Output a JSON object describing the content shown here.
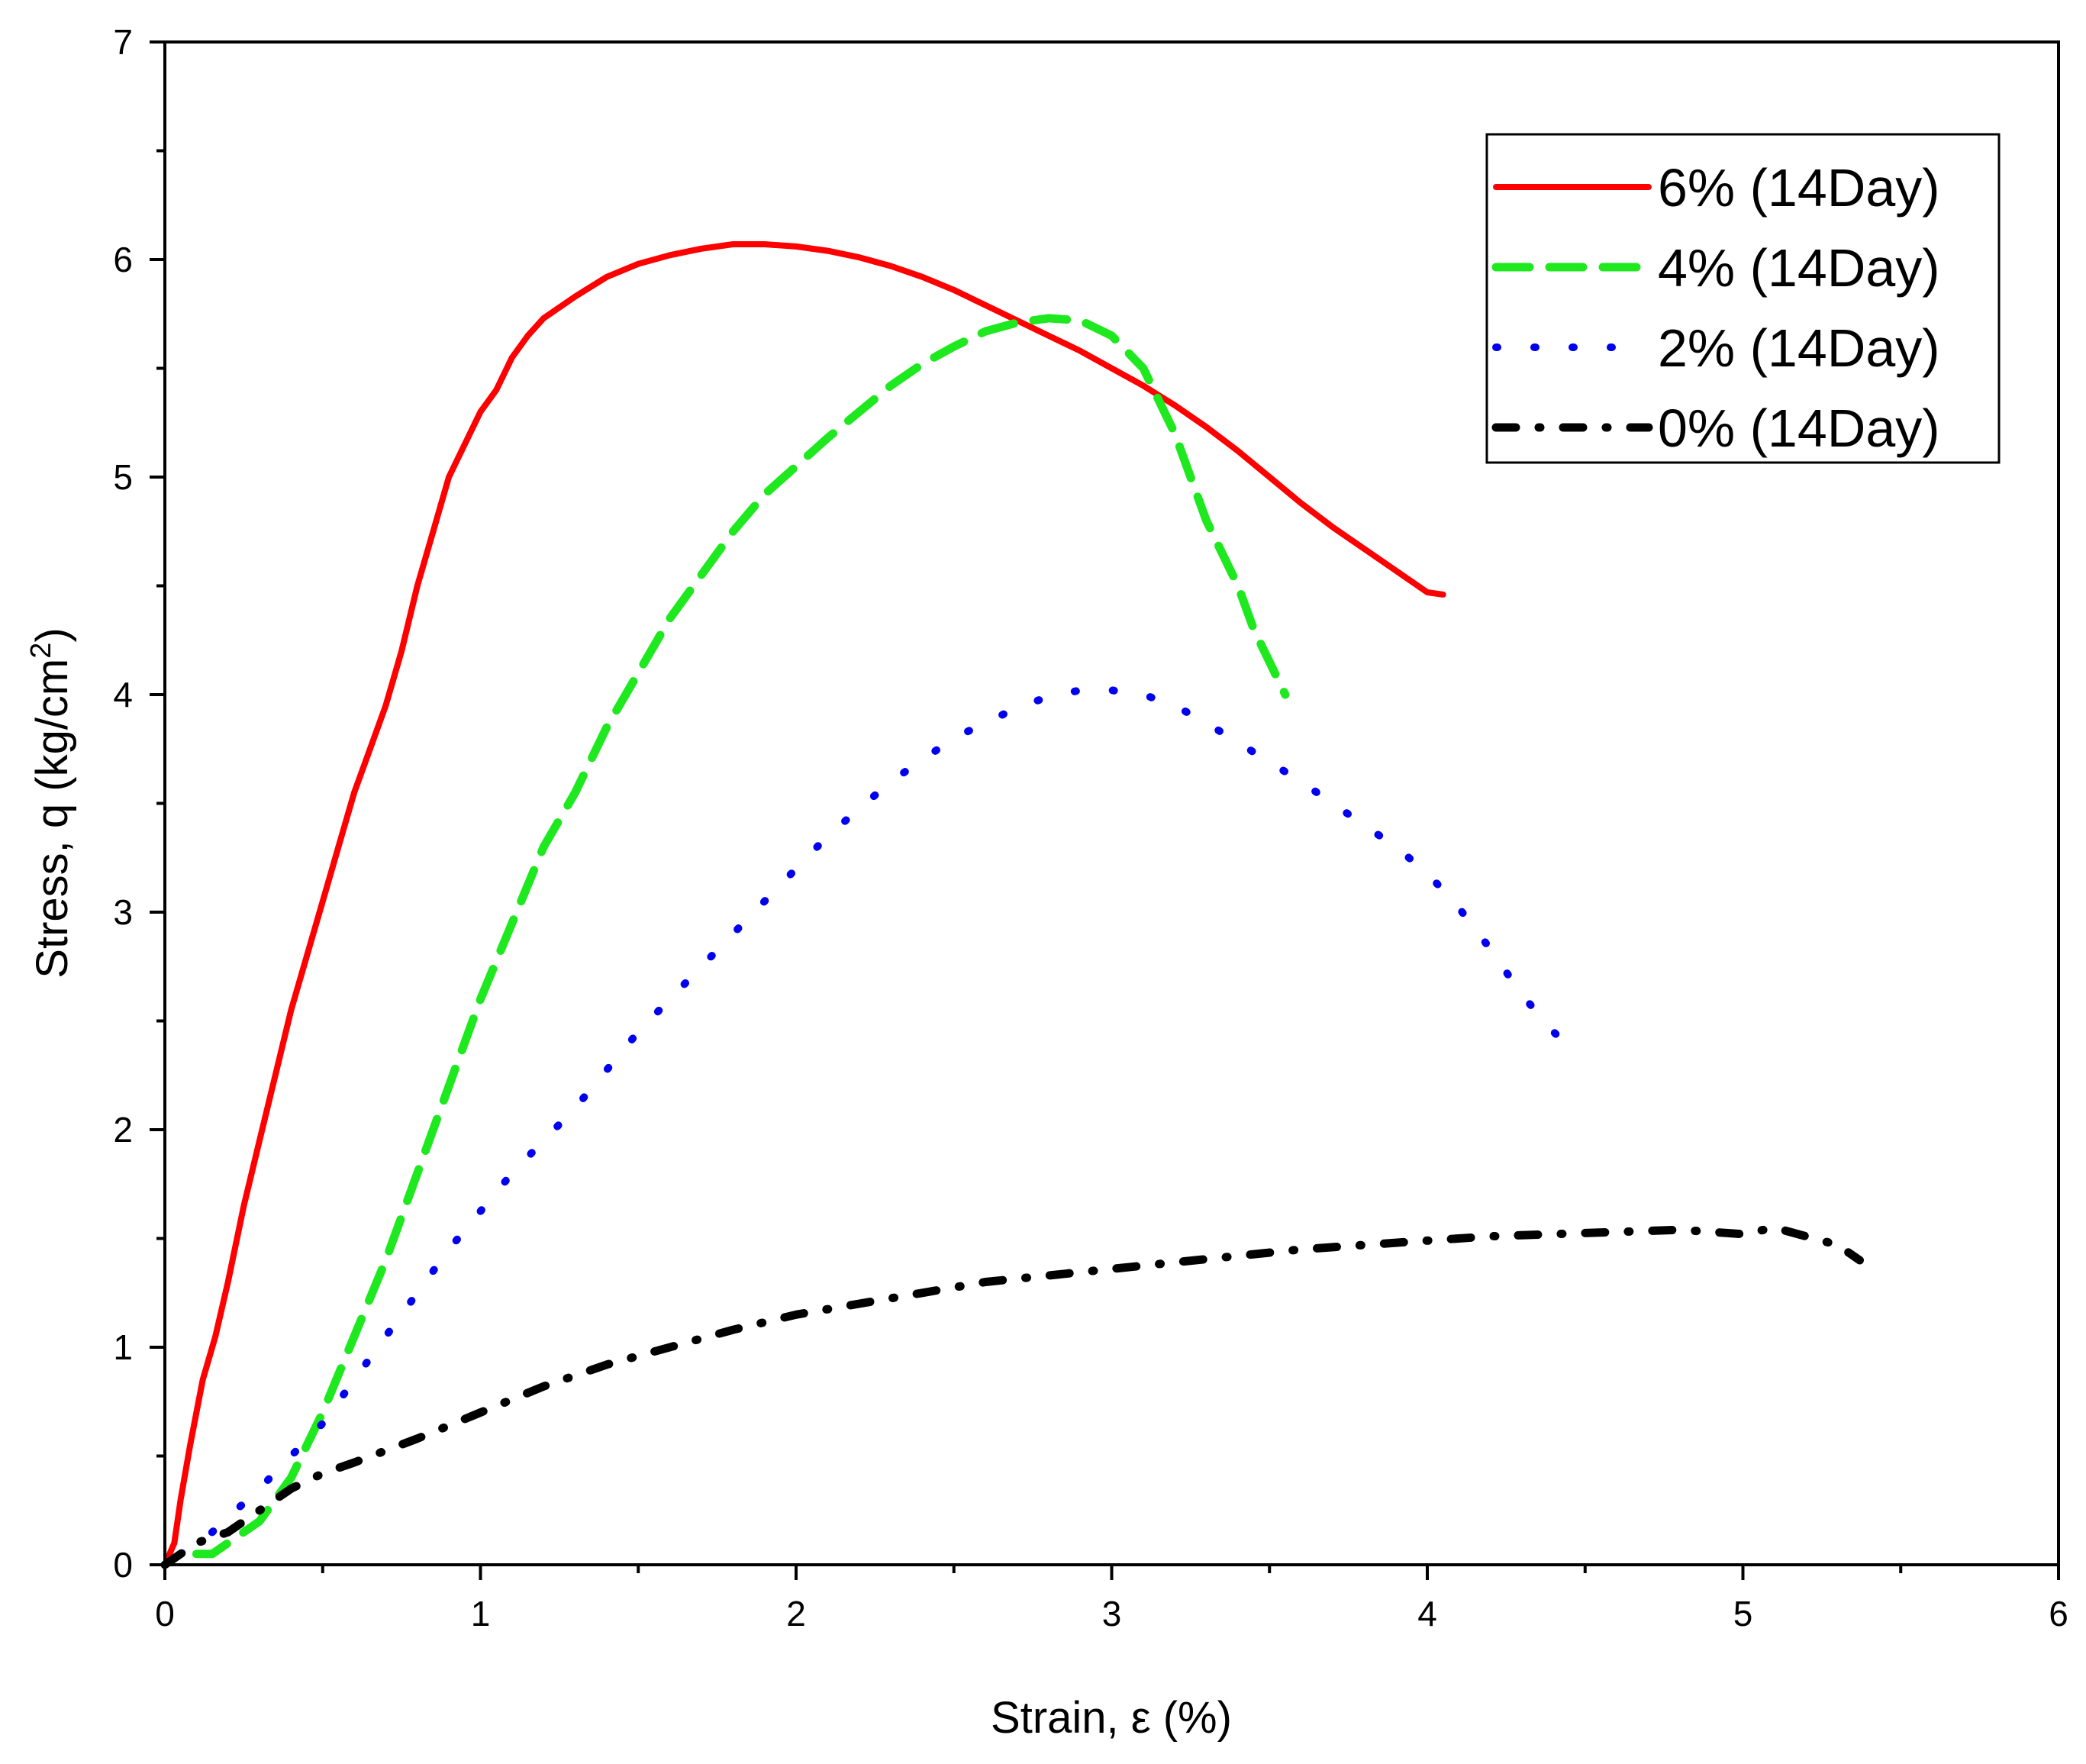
{
  "chart_data": {
    "type": "line",
    "title": "",
    "xlabel": "Strain, ε (%)",
    "ylabel": "Stress, q (kg/cm",
    "ylabel_sup": "2",
    "ylabel_close": ")",
    "xlim": [
      0,
      6
    ],
    "ylim": [
      0,
      7
    ],
    "xticks": [
      "0",
      "1",
      "2",
      "3",
      "4",
      "5",
      "6"
    ],
    "yticks": [
      "0",
      "1",
      "2",
      "3",
      "4",
      "5",
      "6",
      "7"
    ],
    "legend_position": "top-right",
    "series": [
      {
        "name": "6% (14Day)",
        "color": "#ff0000",
        "style": "solid",
        "x": [
          0.0,
          0.03,
          0.05,
          0.08,
          0.12,
          0.16,
          0.2,
          0.25,
          0.3,
          0.35,
          0.4,
          0.45,
          0.5,
          0.55,
          0.6,
          0.65,
          0.7,
          0.75,
          0.8,
          0.85,
          0.9,
          0.95,
          1.0,
          1.05,
          1.1,
          1.15,
          1.2,
          1.3,
          1.4,
          1.5,
          1.6,
          1.7,
          1.8,
          1.9,
          2.0,
          2.1,
          2.2,
          2.3,
          2.4,
          2.5,
          2.6,
          2.7,
          2.8,
          2.9,
          3.0,
          3.1,
          3.2,
          3.3,
          3.4,
          3.5,
          3.6,
          3.7,
          3.8,
          3.9,
          4.0,
          4.05
        ],
        "y": [
          0.0,
          0.1,
          0.3,
          0.55,
          0.85,
          1.05,
          1.3,
          1.65,
          1.95,
          2.25,
          2.55,
          2.8,
          3.05,
          3.3,
          3.55,
          3.75,
          3.95,
          4.2,
          4.5,
          4.75,
          5.0,
          5.15,
          5.3,
          5.4,
          5.55,
          5.65,
          5.73,
          5.83,
          5.92,
          5.98,
          6.02,
          6.05,
          6.07,
          6.07,
          6.06,
          6.04,
          6.01,
          5.97,
          5.92,
          5.86,
          5.79,
          5.72,
          5.65,
          5.58,
          5.5,
          5.42,
          5.33,
          5.23,
          5.12,
          5.0,
          4.88,
          4.77,
          4.67,
          4.57,
          4.47,
          4.46
        ]
      },
      {
        "name": "4% (14Day)",
        "color": "#1ee81e",
        "style": "dashed",
        "x": [
          0.1,
          0.15,
          0.2,
          0.3,
          0.4,
          0.5,
          0.6,
          0.7,
          0.8,
          0.9,
          1.0,
          1.1,
          1.2,
          1.3,
          1.4,
          1.5,
          1.6,
          1.7,
          1.8,
          1.9,
          2.0,
          2.1,
          2.2,
          2.3,
          2.4,
          2.5,
          2.6,
          2.7,
          2.8,
          2.9,
          3.0,
          3.1,
          3.2,
          3.3,
          3.4,
          3.45,
          3.5,
          3.55
        ],
        "y": [
          0.05,
          0.05,
          0.1,
          0.2,
          0.4,
          0.7,
          1.05,
          1.4,
          1.8,
          2.2,
          2.6,
          2.95,
          3.3,
          3.55,
          3.85,
          4.1,
          4.35,
          4.55,
          4.75,
          4.92,
          5.05,
          5.18,
          5.3,
          5.42,
          5.52,
          5.6,
          5.67,
          5.71,
          5.73,
          5.72,
          5.65,
          5.5,
          5.2,
          4.8,
          4.5,
          4.3,
          4.15,
          4.0
        ]
      },
      {
        "name": "2% (14Day)",
        "color": "#0000ee",
        "style": "dotted",
        "x": [
          0.05,
          0.15,
          0.3,
          0.5,
          0.7,
          0.9,
          1.1,
          1.3,
          1.5,
          1.7,
          1.9,
          2.1,
          2.3,
          2.5,
          2.7,
          2.8,
          2.9,
          3.0,
          3.1,
          3.2,
          3.3,
          3.4,
          3.5,
          3.6,
          3.7,
          3.8,
          3.9,
          4.0,
          4.1,
          4.2,
          4.3,
          4.4,
          4.45
        ],
        "y": [
          0.05,
          0.15,
          0.35,
          0.65,
          1.05,
          1.45,
          1.8,
          2.1,
          2.45,
          2.75,
          3.05,
          3.35,
          3.6,
          3.8,
          3.94,
          3.99,
          4.02,
          4.02,
          4.0,
          3.95,
          3.87,
          3.78,
          3.69,
          3.6,
          3.5,
          3.4,
          3.3,
          3.18,
          3.02,
          2.83,
          2.62,
          2.45,
          2.38
        ]
      },
      {
        "name": "0% (14Day)",
        "color": "#000000",
        "style": "dashdot",
        "x": [
          0.0,
          0.1,
          0.2,
          0.3,
          0.4,
          0.5,
          0.6,
          0.8,
          1.0,
          1.2,
          1.4,
          1.6,
          1.8,
          2.0,
          2.2,
          2.4,
          2.6,
          2.8,
          3.0,
          3.2,
          3.4,
          3.6,
          3.8,
          4.0,
          4.2,
          4.4,
          4.6,
          4.8,
          5.0,
          5.1,
          5.2,
          5.3,
          5.37
        ],
        "y": [
          0.0,
          0.1,
          0.15,
          0.25,
          0.35,
          0.42,
          0.47,
          0.58,
          0.7,
          0.82,
          0.92,
          1.0,
          1.08,
          1.15,
          1.2,
          1.25,
          1.3,
          1.33,
          1.36,
          1.39,
          1.42,
          1.45,
          1.47,
          1.49,
          1.51,
          1.52,
          1.53,
          1.54,
          1.52,
          1.55,
          1.51,
          1.47,
          1.4
        ]
      }
    ]
  }
}
